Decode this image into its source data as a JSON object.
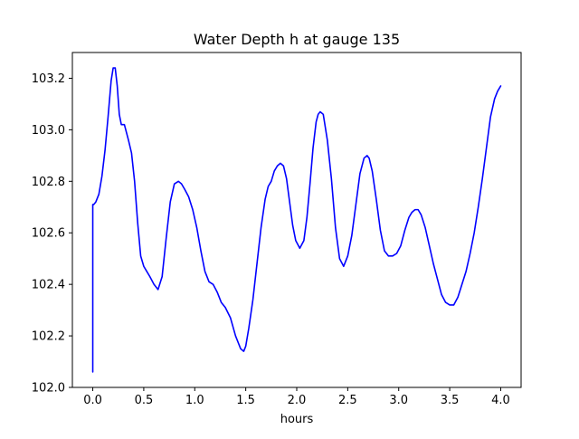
{
  "chart_data": {
    "type": "line",
    "title": "Water Depth h at gauge 135",
    "xlabel": "hours",
    "ylabel": "",
    "xlim": [
      -0.2,
      4.2
    ],
    "ylim": [
      102.0,
      103.3
    ],
    "xticks": [
      0.0,
      0.5,
      1.0,
      1.5,
      2.0,
      2.5,
      3.0,
      3.5,
      4.0
    ],
    "xtick_labels": [
      "0.0",
      "0.5",
      "1.0",
      "1.5",
      "2.0",
      "2.5",
      "3.0",
      "3.5",
      "4.0"
    ],
    "yticks": [
      102.0,
      102.2,
      102.4,
      102.6,
      102.8,
      103.0,
      103.2
    ],
    "ytick_labels": [
      "102.0",
      "102.2",
      "102.4",
      "102.6",
      "102.8",
      "103.0",
      "103.2"
    ],
    "grid": false,
    "legend": "none",
    "series": [
      {
        "color": "#0000ff",
        "x": [
          0.0,
          0.0,
          0.01,
          0.03,
          0.06,
          0.09,
          0.12,
          0.15,
          0.18,
          0.2,
          0.22,
          0.24,
          0.26,
          0.28,
          0.31,
          0.35,
          0.38,
          0.41,
          0.44,
          0.47,
          0.5,
          0.53,
          0.56,
          0.6,
          0.64,
          0.68,
          0.72,
          0.76,
          0.8,
          0.84,
          0.87,
          0.9,
          0.94,
          0.98,
          1.02,
          1.06,
          1.1,
          1.14,
          1.18,
          1.22,
          1.26,
          1.3,
          1.35,
          1.4,
          1.45,
          1.48,
          1.5,
          1.53,
          1.57,
          1.61,
          1.65,
          1.69,
          1.72,
          1.75,
          1.78,
          1.81,
          1.84,
          1.87,
          1.9,
          1.93,
          1.96,
          1.99,
          2.03,
          2.07,
          2.1,
          2.13,
          2.16,
          2.19,
          2.21,
          2.23,
          2.26,
          2.3,
          2.34,
          2.38,
          2.42,
          2.46,
          2.5,
          2.54,
          2.58,
          2.62,
          2.66,
          2.69,
          2.71,
          2.74,
          2.78,
          2.82,
          2.86,
          2.9,
          2.94,
          2.98,
          3.02,
          3.06,
          3.1,
          3.13,
          3.16,
          3.19,
          3.22,
          3.26,
          3.3,
          3.34,
          3.38,
          3.42,
          3.46,
          3.5,
          3.54,
          3.58,
          3.62,
          3.66,
          3.7,
          3.74,
          3.78,
          3.82,
          3.86,
          3.9,
          3.94,
          3.97,
          4.0
        ],
        "y": [
          102.06,
          102.71,
          102.71,
          102.72,
          102.75,
          102.82,
          102.92,
          103.05,
          103.19,
          103.24,
          103.24,
          103.17,
          103.06,
          103.02,
          103.02,
          102.96,
          102.91,
          102.8,
          102.64,
          102.51,
          102.47,
          102.45,
          102.43,
          102.4,
          102.38,
          102.43,
          102.58,
          102.72,
          102.79,
          102.8,
          102.79,
          102.77,
          102.74,
          102.69,
          102.62,
          102.53,
          102.45,
          102.41,
          102.4,
          102.37,
          102.33,
          102.31,
          102.27,
          102.2,
          102.15,
          102.14,
          102.16,
          102.23,
          102.34,
          102.48,
          102.62,
          102.73,
          102.78,
          102.8,
          102.84,
          102.86,
          102.87,
          102.86,
          102.81,
          102.72,
          102.63,
          102.57,
          102.54,
          102.57,
          102.66,
          102.79,
          102.93,
          103.03,
          103.06,
          103.07,
          103.06,
          102.96,
          102.81,
          102.62,
          102.5,
          102.47,
          102.51,
          102.59,
          102.71,
          102.83,
          102.89,
          102.9,
          102.89,
          102.84,
          102.73,
          102.61,
          102.53,
          102.51,
          102.51,
          102.52,
          102.55,
          102.61,
          102.66,
          102.68,
          102.69,
          102.69,
          102.67,
          102.62,
          102.55,
          102.48,
          102.42,
          102.36,
          102.33,
          102.32,
          102.32,
          102.35,
          102.4,
          102.45,
          102.52,
          102.6,
          102.7,
          102.81,
          102.93,
          103.05,
          103.12,
          103.15,
          103.17
        ]
      }
    ]
  }
}
